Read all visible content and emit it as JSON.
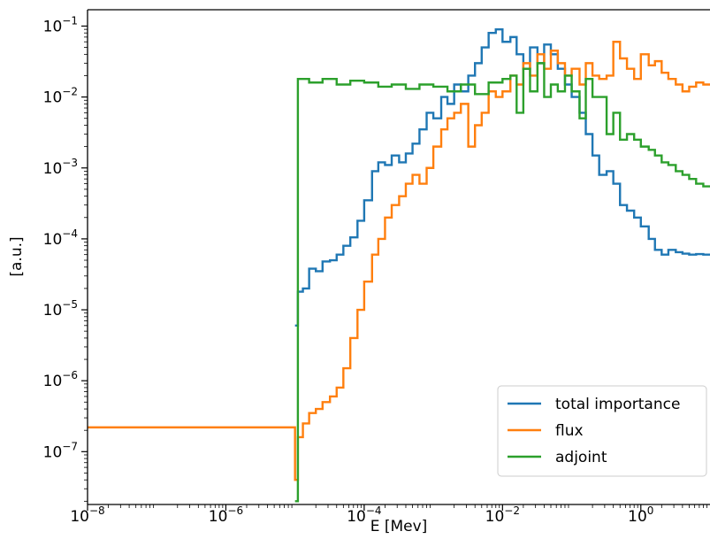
{
  "chart_data": {
    "type": "line",
    "step": true,
    "xscale": "log",
    "yscale": "log",
    "xlim": [
      1e-08,
      10
    ],
    "ylim": [
      1.8e-08,
      0.17
    ],
    "xlabel": "E [Mev]",
    "ylabel": "[a.u.]",
    "grid": false,
    "legend_position": "lower-right",
    "x_ticks": [
      {
        "value": 1e-08,
        "base": "10",
        "exp": "−8"
      },
      {
        "value": 1e-06,
        "base": "10",
        "exp": "−6"
      },
      {
        "value": 0.0001,
        "base": "10",
        "exp": "−4"
      },
      {
        "value": 0.01,
        "base": "10",
        "exp": "−2"
      },
      {
        "value": 1,
        "base": "10",
        "exp": "0"
      }
    ],
    "y_ticks": [
      {
        "value": 1e-07,
        "base": "10",
        "exp": "−7"
      },
      {
        "value": 1e-06,
        "base": "10",
        "exp": "−6"
      },
      {
        "value": 1e-05,
        "base": "10",
        "exp": "−5"
      },
      {
        "value": 0.0001,
        "base": "10",
        "exp": "−4"
      },
      {
        "value": 0.001,
        "base": "10",
        "exp": "−3"
      },
      {
        "value": 0.01,
        "base": "10",
        "exp": "−2"
      },
      {
        "value": 0.1,
        "base": "10",
        "exp": "−1"
      }
    ],
    "series": [
      {
        "name": "total importance",
        "color": "#1f77b4",
        "x": [
          1e-05,
          1.1e-05,
          1.3e-05,
          1.6e-05,
          2e-05,
          2.5e-05,
          3.2e-05,
          4e-05,
          5e-05,
          6.3e-05,
          8e-05,
          0.0001,
          0.00013,
          0.00016,
          0.0002,
          0.00025,
          0.00032,
          0.0004,
          0.0005,
          0.00063,
          0.0008,
          0.001,
          0.0013,
          0.0016,
          0.002,
          0.0025,
          0.0032,
          0.004,
          0.005,
          0.0063,
          0.008,
          0.01,
          0.013,
          0.016,
          0.02,
          0.025,
          0.032,
          0.04,
          0.05,
          0.063,
          0.08,
          0.1,
          0.13,
          0.16,
          0.2,
          0.25,
          0.32,
          0.4,
          0.5,
          0.63,
          0.8,
          1,
          1.3,
          1.6,
          2,
          2.5,
          3.2,
          4,
          5,
          6.3,
          8,
          10
        ],
        "y": [
          6e-06,
          1.8e-05,
          2e-05,
          3.8e-05,
          3.5e-05,
          4.8e-05,
          5e-05,
          6e-05,
          8e-05,
          0.000105,
          0.00018,
          0.00035,
          0.0009,
          0.0012,
          0.0011,
          0.0015,
          0.0012,
          0.0016,
          0.0022,
          0.0035,
          0.006,
          0.005,
          0.01,
          0.008,
          0.015,
          0.012,
          0.02,
          0.03,
          0.05,
          0.08,
          0.09,
          0.06,
          0.07,
          0.04,
          0.025,
          0.05,
          0.03,
          0.055,
          0.04,
          0.025,
          0.015,
          0.01,
          0.006,
          0.003,
          0.0015,
          0.0008,
          0.0009,
          0.0006,
          0.0003,
          0.00025,
          0.0002,
          0.00015,
          0.0001,
          7e-05,
          6e-05,
          7e-05,
          6.5e-05,
          6.2e-05,
          6e-05,
          6.1e-05,
          6e-05,
          6e-05
        ]
      },
      {
        "name": "flux",
        "color": "#ff7f0e",
        "x": [
          1e-08,
          1e-05,
          1.1e-05,
          1.3e-05,
          1.6e-05,
          2e-05,
          2.5e-05,
          3.2e-05,
          4e-05,
          5e-05,
          6.3e-05,
          8e-05,
          0.0001,
          0.00013,
          0.00016,
          0.0002,
          0.00025,
          0.00032,
          0.0004,
          0.0005,
          0.00063,
          0.0008,
          0.001,
          0.0013,
          0.0016,
          0.002,
          0.0025,
          0.0032,
          0.004,
          0.005,
          0.0063,
          0.008,
          0.01,
          0.013,
          0.016,
          0.02,
          0.025,
          0.032,
          0.04,
          0.05,
          0.063,
          0.08,
          0.1,
          0.13,
          0.16,
          0.2,
          0.25,
          0.32,
          0.4,
          0.5,
          0.63,
          0.8,
          1,
          1.3,
          1.6,
          2,
          2.5,
          3.2,
          4,
          5,
          6.3,
          8,
          10
        ],
        "y": [
          2.2e-07,
          4e-08,
          1.6e-07,
          2.5e-07,
          3.5e-07,
          4e-07,
          5e-07,
          6e-07,
          8e-07,
          1.5e-06,
          4e-06,
          1e-05,
          2.5e-05,
          6e-05,
          0.0001,
          0.0002,
          0.0003,
          0.0004,
          0.0006,
          0.0008,
          0.0006,
          0.001,
          0.002,
          0.0035,
          0.005,
          0.006,
          0.008,
          0.002,
          0.004,
          0.006,
          0.012,
          0.01,
          0.012,
          0.02,
          0.015,
          0.03,
          0.02,
          0.04,
          0.025,
          0.045,
          0.03,
          0.02,
          0.025,
          0.015,
          0.03,
          0.02,
          0.018,
          0.02,
          0.06,
          0.035,
          0.025,
          0.018,
          0.04,
          0.028,
          0.032,
          0.022,
          0.018,
          0.015,
          0.012,
          0.014,
          0.016,
          0.015,
          0.015
        ]
      },
      {
        "name": "adjoint",
        "color": "#2ca02c",
        "x": [
          1e-05,
          1.1e-05,
          1.6e-05,
          2.5e-05,
          4e-05,
          6.3e-05,
          0.0001,
          0.00016,
          0.00025,
          0.0004,
          0.00063,
          0.001,
          0.0016,
          0.0025,
          0.004,
          0.0063,
          0.01,
          0.013,
          0.016,
          0.02,
          0.025,
          0.032,
          0.04,
          0.05,
          0.063,
          0.08,
          0.1,
          0.13,
          0.16,
          0.2,
          0.25,
          0.32,
          0.4,
          0.5,
          0.63,
          0.8,
          1,
          1.3,
          1.6,
          2,
          2.5,
          3.2,
          4,
          5,
          6.3,
          8,
          10
        ],
        "y": [
          2e-08,
          0.018,
          0.016,
          0.018,
          0.015,
          0.017,
          0.016,
          0.014,
          0.015,
          0.013,
          0.015,
          0.014,
          0.012,
          0.015,
          0.011,
          0.016,
          0.018,
          0.02,
          0.006,
          0.025,
          0.012,
          0.03,
          0.01,
          0.015,
          0.012,
          0.02,
          0.012,
          0.005,
          0.018,
          0.01,
          0.01,
          0.003,
          0.006,
          0.0025,
          0.003,
          0.0025,
          0.002,
          0.0018,
          0.0015,
          0.0012,
          0.0011,
          0.0009,
          0.0008,
          0.0007,
          0.0006,
          0.00055,
          0.00055
        ]
      }
    ]
  }
}
